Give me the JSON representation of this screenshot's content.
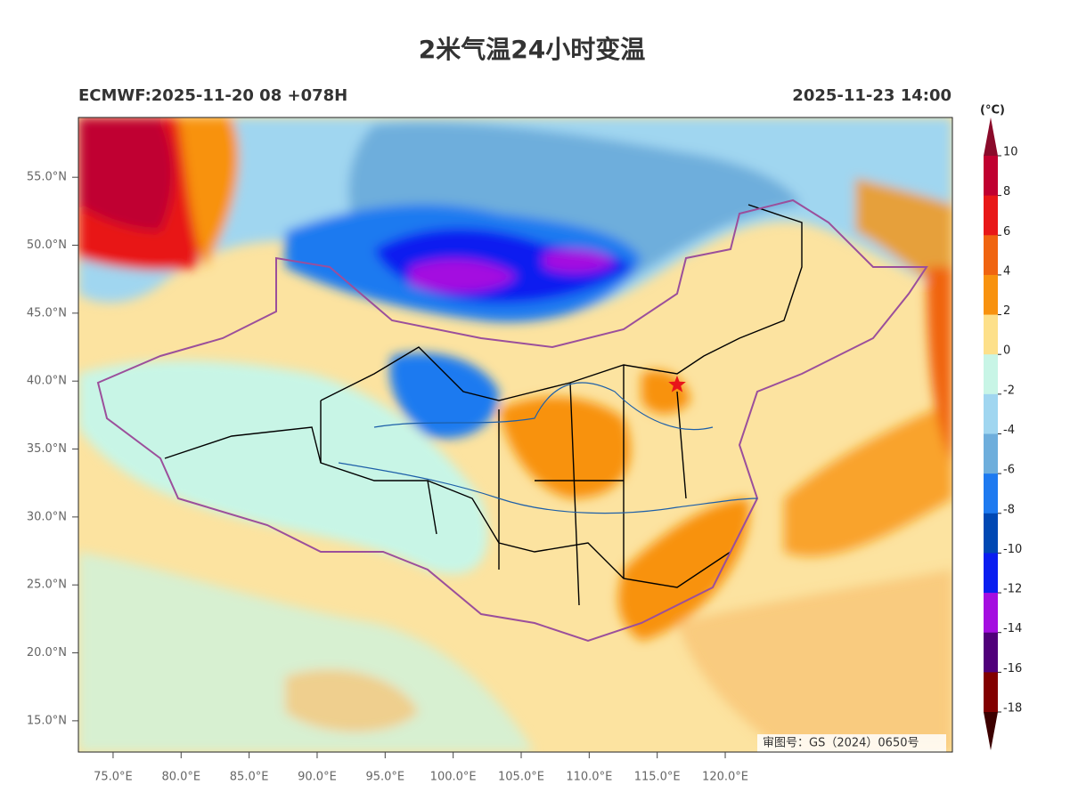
{
  "title": "2米气温24小时变温",
  "subtitle_left": "ECMWF:2025-11-20 08 +078H",
  "subtitle_right": "2025-11-23 14:00",
  "map": {
    "lon_range": [
      72.45,
      136.7
    ],
    "lat_range": [
      12.7,
      59.4
    ],
    "lon_ticks": [
      {
        "value": 75,
        "label": "75.0°E"
      },
      {
        "value": 80,
        "label": "80.0°E"
      },
      {
        "value": 85,
        "label": "85.0°E"
      },
      {
        "value": 90,
        "label": "90.0°E"
      },
      {
        "value": 95,
        "label": "95.0°E"
      },
      {
        "value": 100,
        "label": "100.0°E"
      },
      {
        "value": 105,
        "label": "105.0°E"
      },
      {
        "value": 110,
        "label": "110.0°E"
      },
      {
        "value": 115,
        "label": "115.0°E"
      },
      {
        "value": 120,
        "label": "120.0°E"
      }
    ],
    "lat_ticks": [
      {
        "value": 55,
        "label": "55.0°N"
      },
      {
        "value": 50,
        "label": "50.0°N"
      },
      {
        "value": 45,
        "label": "45.0°N"
      },
      {
        "value": 40,
        "label": "40.0°N"
      },
      {
        "value": 35,
        "label": "35.0°N"
      },
      {
        "value": 30,
        "label": "30.0°N"
      },
      {
        "value": 25,
        "label": "25.0°N"
      },
      {
        "value": 20,
        "label": "20.0°N"
      },
      {
        "value": 15,
        "label": "15.0°N"
      }
    ],
    "approval_note": "审图号：GS（2024）0650号"
  },
  "colorbar": {
    "unit": "(°C)",
    "levels": [
      10,
      8,
      6,
      4,
      2,
      0,
      -2,
      -4,
      -6,
      -8,
      -10,
      -12,
      -14,
      -16,
      -18
    ],
    "colors": [
      "#8a0a2a",
      "#c00030",
      "#e81818",
      "#f06410",
      "#f8920e",
      "#fde08a",
      "#c8f5e6",
      "#a0d6f0",
      "#6eaedc",
      "#1e7af0",
      "#0048b4",
      "#0a1ef0",
      "#a40ee0",
      "#50007a",
      "#820000",
      "#3c0000"
    ]
  }
}
